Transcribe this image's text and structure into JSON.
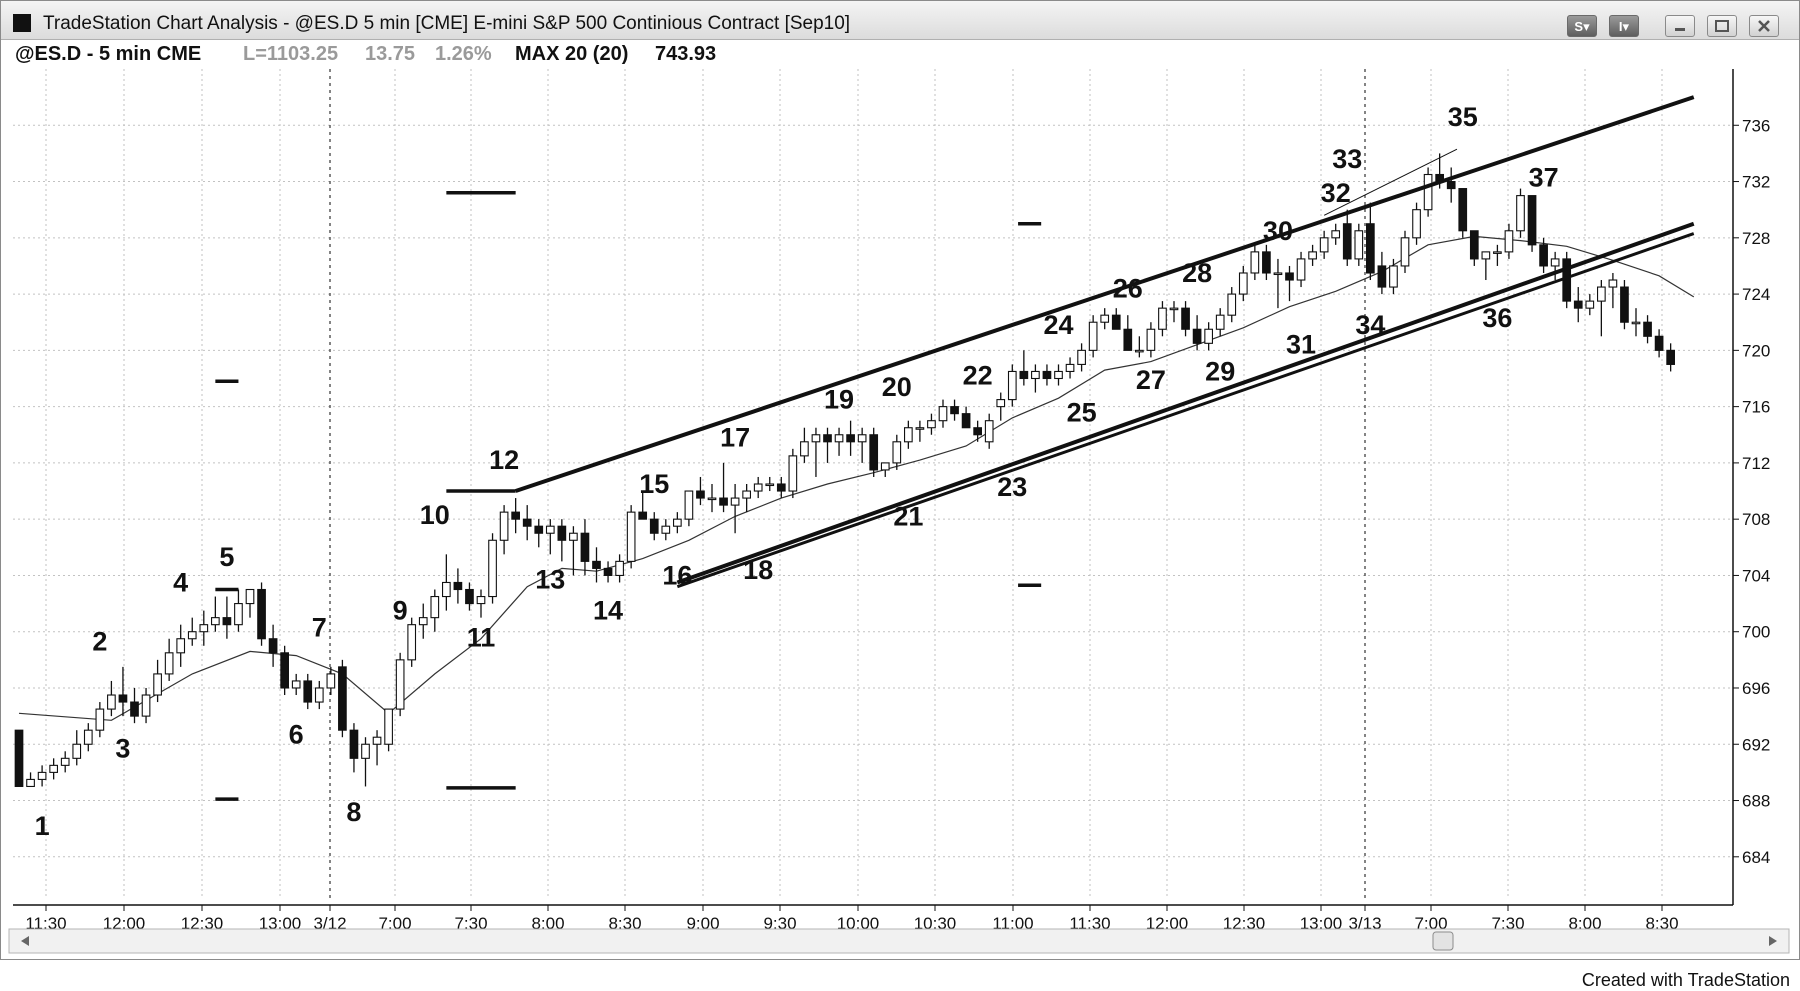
{
  "window": {
    "title": "TradeStation Chart Analysis - @ES.D 5 min [CME] E-mini S&P 500 Continious Contract [Sep10]",
    "buttons": [
      "S",
      "I"
    ]
  },
  "header": {
    "symbol": "@ES.D - 5 min CME",
    "last": "L=1103.25",
    "change": "13.75",
    "change_pct": "1.26%",
    "indicator": "MAX 20 (20)",
    "indicator_value": "743.93"
  },
  "footer": {
    "text": "Created with TradeStation"
  },
  "colors": {
    "grid": "#c2c2c2",
    "bear": "#111111",
    "bull": "#ffffff",
    "ma": "#333333"
  },
  "chart_data": {
    "type": "candlestick",
    "ylim": [
      681,
      740
    ],
    "y_ticks": [
      684,
      688,
      692,
      696,
      700,
      704,
      708,
      712,
      716,
      720,
      724,
      728,
      732,
      736
    ],
    "x_ticks": [
      "11:30",
      "12:00",
      "12:30",
      "13:00",
      "3/12",
      "7:00",
      "7:30",
      "8:00",
      "8:30",
      "9:00",
      "9:30",
      "10:00",
      "10:30",
      "11:00",
      "11:30",
      "12:00",
      "12:30",
      "13:00",
      "3/13",
      "7:00",
      "7:30",
      "8:00",
      "8:30"
    ],
    "session_breaks_at": [
      "3/12",
      "3/13"
    ],
    "candles_ohlc": [
      [
        693,
        693,
        689,
        689
      ],
      [
        689,
        690,
        689,
        689.5
      ],
      [
        689.5,
        690.5,
        689,
        690
      ],
      [
        690,
        691,
        689.5,
        690.5
      ],
      [
        690.5,
        691.5,
        690,
        691
      ],
      [
        691,
        693,
        690.5,
        692
      ],
      [
        692,
        693.5,
        691.5,
        693
      ],
      [
        693,
        695,
        692.5,
        694.5
      ],
      [
        694.5,
        696.5,
        694,
        695.5
      ],
      [
        695.5,
        697.5,
        694,
        695
      ],
      [
        695,
        696,
        693.5,
        694
      ],
      [
        694,
        696,
        693.5,
        695.5
      ],
      [
        695.5,
        698,
        695,
        697
      ],
      [
        697,
        699.5,
        696.5,
        698.5
      ],
      [
        698.5,
        700.5,
        697.5,
        699.5
      ],
      [
        699.5,
        701,
        699,
        700
      ],
      [
        700,
        701.5,
        699,
        700.5
      ],
      [
        700.5,
        702.5,
        700,
        701
      ],
      [
        701,
        702.5,
        699.5,
        700.5
      ],
      [
        700.5,
        703,
        700,
        702
      ],
      [
        702,
        703,
        701,
        703
      ],
      [
        703,
        703.5,
        699,
        699.5
      ],
      [
        699.5,
        700.5,
        697.5,
        698.5
      ],
      [
        698.5,
        699,
        695.5,
        696
      ],
      [
        696,
        697,
        695.5,
        696.5
      ],
      [
        696.5,
        697,
        694.5,
        695
      ],
      [
        695,
        696.5,
        694.5,
        696
      ],
      [
        696,
        697.5,
        695.5,
        697
      ],
      [
        697.5,
        698,
        692.5,
        693
      ],
      [
        693,
        693.5,
        690,
        691
      ],
      [
        691,
        692.5,
        689,
        692
      ],
      [
        692,
        693,
        690.5,
        692.5
      ],
      [
        692,
        694.5,
        691.5,
        694.5
      ],
      [
        694.5,
        698.5,
        694,
        698
      ],
      [
        698,
        701,
        697.5,
        700.5
      ],
      [
        700.5,
        702,
        699.5,
        701
      ],
      [
        701,
        703,
        700,
        702.5
      ],
      [
        702.5,
        705.5,
        701.5,
        703.5
      ],
      [
        703.5,
        704.5,
        702,
        703
      ],
      [
        703,
        703.5,
        701.5,
        702
      ],
      [
        702,
        703,
        701,
        702.5
      ],
      [
        702.5,
        707,
        702,
        706.5
      ],
      [
        706.5,
        709,
        705.5,
        708.5
      ],
      [
        708.5,
        709.5,
        707,
        708
      ],
      [
        708,
        709,
        706.5,
        707.5
      ],
      [
        707.5,
        708,
        706,
        707
      ],
      [
        707,
        708,
        705.5,
        707.5
      ],
      [
        707.5,
        708,
        705,
        706.5
      ],
      [
        706.5,
        707.5,
        704,
        707
      ],
      [
        707,
        708,
        704,
        705
      ],
      [
        705,
        706,
        703.5,
        704.5
      ],
      [
        704.5,
        705,
        703.5,
        704
      ],
      [
        704,
        705.5,
        703.5,
        705
      ],
      [
        705,
        709,
        704.5,
        708.5
      ],
      [
        708.5,
        710,
        708,
        708
      ],
      [
        708,
        708.5,
        706.5,
        707
      ],
      [
        707,
        708,
        706.5,
        707.5
      ],
      [
        707.5,
        708.5,
        707,
        708
      ],
      [
        708,
        710,
        707.5,
        710
      ],
      [
        710,
        711,
        709,
        709.5
      ],
      [
        709.5,
        710.5,
        708.5,
        709.5
      ],
      [
        709.5,
        712,
        708.5,
        709
      ],
      [
        709,
        710.5,
        707,
        709.5
      ],
      [
        709.5,
        710.5,
        708.5,
        710
      ],
      [
        710,
        711,
        709.5,
        710.5
      ],
      [
        710.5,
        711,
        710,
        710.5
      ],
      [
        710.5,
        711,
        709.5,
        710
      ],
      [
        710,
        713,
        709.5,
        712.5
      ],
      [
        712.5,
        714.5,
        712,
        713.5
      ],
      [
        713.5,
        714.5,
        711,
        714
      ],
      [
        714,
        714.5,
        712,
        713.5
      ],
      [
        713.5,
        714.5,
        712.5,
        714
      ],
      [
        714,
        715,
        712.5,
        713.5
      ],
      [
        713.5,
        714.5,
        712,
        714
      ],
      [
        714,
        714.5,
        711,
        711.5
      ],
      [
        711.5,
        712,
        711,
        712
      ],
      [
        712,
        714,
        711.5,
        713.5
      ],
      [
        713.5,
        715,
        713,
        714.5
      ],
      [
        714.5,
        715,
        713.5,
        714.5
      ],
      [
        714.5,
        715.5,
        714,
        715
      ],
      [
        715,
        716.5,
        714.5,
        716
      ],
      [
        716,
        716.5,
        715,
        715.5
      ],
      [
        715.5,
        716,
        714.5,
        714.5
      ],
      [
        714.5,
        715,
        713.5,
        714
      ],
      [
        713.5,
        715.5,
        713,
        715
      ],
      [
        716,
        717,
        715,
        716.5
      ],
      [
        716.5,
        719,
        716,
        718.5
      ],
      [
        718.5,
        720,
        717.5,
        718
      ],
      [
        718,
        719,
        717,
        718.5
      ],
      [
        718.5,
        719,
        717.5,
        718
      ],
      [
        718,
        719,
        717.5,
        718.5
      ],
      [
        718.5,
        719.5,
        718,
        719
      ],
      [
        719,
        720.5,
        718.5,
        720
      ],
      [
        720,
        722.5,
        719.5,
        722
      ],
      [
        722,
        723,
        721.5,
        722.5
      ],
      [
        722.5,
        723,
        721.5,
        721.5
      ],
      [
        721.5,
        722.5,
        720,
        720
      ],
      [
        720,
        721,
        719.5,
        720
      ],
      [
        720,
        722,
        719.5,
        721.5
      ],
      [
        721.5,
        723.5,
        721,
        723
      ],
      [
        723,
        723.5,
        722,
        723
      ],
      [
        723,
        723.5,
        721,
        721.5
      ],
      [
        721.5,
        722.5,
        720,
        720.5
      ],
      [
        720.5,
        722,
        720,
        721.5
      ],
      [
        721.5,
        723,
        721,
        722.5
      ],
      [
        722.5,
        724.5,
        722,
        724
      ],
      [
        724,
        726,
        723.5,
        725.5
      ],
      [
        725.5,
        727.5,
        725,
        727
      ],
      [
        727,
        727.5,
        725,
        725.5
      ],
      [
        725.5,
        726.5,
        723,
        725.5
      ],
      [
        725.5,
        726,
        723.5,
        725
      ],
      [
        725,
        727,
        724.5,
        726.5
      ],
      [
        726.5,
        727.5,
        726,
        727
      ],
      [
        727,
        728.5,
        726.5,
        728
      ],
      [
        728,
        729,
        727.5,
        728.5
      ],
      [
        729,
        730,
        726,
        726.5
      ],
      [
        726.5,
        729,
        726,
        728.5
      ],
      [
        729,
        730.5,
        725,
        725.5
      ],
      [
        726,
        727,
        724,
        724.5
      ],
      [
        724.5,
        726.5,
        724,
        726
      ],
      [
        726,
        728.5,
        725.5,
        728
      ],
      [
        728,
        730.5,
        727.5,
        730
      ],
      [
        730,
        733,
        729.5,
        732.5
      ],
      [
        732.5,
        734,
        731.5,
        732
      ],
      [
        732,
        733,
        730.5,
        731.5
      ],
      [
        731.5,
        731.5,
        728,
        728.5
      ],
      [
        728.5,
        728.5,
        726,
        726.5
      ],
      [
        726.5,
        727,
        725,
        727
      ],
      [
        727,
        727.5,
        726,
        727
      ],
      [
        727,
        729,
        726.5,
        728.5
      ],
      [
        728.5,
        731.5,
        728,
        731
      ],
      [
        731,
        731,
        727,
        727.5
      ],
      [
        727.5,
        728,
        725.5,
        726
      ],
      [
        726,
        727,
        725,
        726.5
      ],
      [
        726.5,
        727,
        723,
        723.5
      ],
      [
        723.5,
        724.5,
        722,
        723
      ],
      [
        723,
        724,
        722.5,
        723.5
      ],
      [
        723.5,
        725,
        721,
        724.5
      ],
      [
        724.5,
        725.5,
        723,
        725
      ],
      [
        724.5,
        725,
        721.5,
        722
      ],
      [
        722,
        723,
        721,
        722
      ],
      [
        722,
        722.5,
        720.5,
        721
      ],
      [
        721,
        721.5,
        719.5,
        720
      ],
      [
        720,
        720.5,
        718.5,
        719
      ]
    ],
    "moving_average": [
      [
        0,
        694.2
      ],
      [
        8,
        693.7
      ],
      [
        15,
        697
      ],
      [
        20,
        698.6
      ],
      [
        24,
        698.3
      ],
      [
        28,
        697
      ],
      [
        32,
        694.2
      ],
      [
        36,
        697
      ],
      [
        40,
        699.5
      ],
      [
        44,
        703.2
      ],
      [
        47,
        704.5
      ],
      [
        50,
        704.3
      ],
      [
        54,
        705.2
      ],
      [
        58,
        706.5
      ],
      [
        62,
        708.2
      ],
      [
        66,
        709.5
      ],
      [
        70,
        710.5
      ],
      [
        74,
        711.3
      ],
      [
        78,
        712.2
      ],
      [
        82,
        713.2
      ],
      [
        86,
        715.2
      ],
      [
        90,
        716.6
      ],
      [
        94,
        718.6
      ],
      [
        98,
        719.2
      ],
      [
        102,
        720.4
      ],
      [
        106,
        721.6
      ],
      [
        110,
        723.1
      ],
      [
        114,
        724.2
      ],
      [
        118,
        725.6
      ],
      [
        122,
        727.5
      ],
      [
        126,
        728.1
      ],
      [
        130,
        727.8
      ],
      [
        134,
        727.4
      ],
      [
        138,
        726.4
      ],
      [
        142,
        725.3
      ],
      [
        145,
        723.8
      ]
    ],
    "channel_lines": [
      {
        "from": [
          43,
          710
        ],
        "to": [
          145,
          738
        ]
      },
      {
        "from": [
          57,
          703.5
        ],
        "to": [
          145,
          729
        ]
      },
      {
        "from": [
          57,
          703.2
        ],
        "to": [
          145,
          728.3
        ]
      }
    ],
    "annotations": [
      {
        "label": "1",
        "x": 2,
        "y": 686.2
      },
      {
        "label": "2",
        "x": 7,
        "y": 699.3
      },
      {
        "label": "3",
        "x": 9,
        "y": 691.7
      },
      {
        "label": "4",
        "x": 14,
        "y": 703.5
      },
      {
        "label": "5",
        "x": 18,
        "y": 705.3
      },
      {
        "label": "6",
        "x": 24,
        "y": 692.7
      },
      {
        "label": "7",
        "x": 26,
        "y": 700.3
      },
      {
        "label": "8",
        "x": 29,
        "y": 687.2
      },
      {
        "label": "9",
        "x": 33,
        "y": 701.5
      },
      {
        "label": "10",
        "x": 36,
        "y": 708.3
      },
      {
        "label": "11",
        "x": 40,
        "y": 699.6
      },
      {
        "label": "12",
        "x": 42,
        "y": 712.2
      },
      {
        "label": "13",
        "x": 46,
        "y": 703.7
      },
      {
        "label": "14",
        "x": 51,
        "y": 701.5
      },
      {
        "label": "15",
        "x": 55,
        "y": 710.5
      },
      {
        "label": "16",
        "x": 57,
        "y": 704
      },
      {
        "label": "17",
        "x": 62,
        "y": 713.8
      },
      {
        "label": "18",
        "x": 64,
        "y": 704.4
      },
      {
        "label": "19",
        "x": 71,
        "y": 716.5
      },
      {
        "label": "20",
        "x": 76,
        "y": 717.4
      },
      {
        "label": "21",
        "x": 77,
        "y": 708.2
      },
      {
        "label": "22",
        "x": 83,
        "y": 718.2
      },
      {
        "label": "23",
        "x": 86,
        "y": 710.3
      },
      {
        "label": "24",
        "x": 90,
        "y": 721.8
      },
      {
        "label": "25",
        "x": 92,
        "y": 715.6
      },
      {
        "label": "26",
        "x": 96,
        "y": 724.4
      },
      {
        "label": "27",
        "x": 98,
        "y": 717.9
      },
      {
        "label": "28",
        "x": 102,
        "y": 725.5
      },
      {
        "label": "29",
        "x": 104,
        "y": 718.5
      },
      {
        "label": "30",
        "x": 109,
        "y": 728.5
      },
      {
        "label": "31",
        "x": 111,
        "y": 720.4
      },
      {
        "label": "32",
        "x": 114,
        "y": 731.2
      },
      {
        "label": "33",
        "x": 115,
        "y": 733.6
      },
      {
        "label": "34",
        "x": 117,
        "y": 721.8
      },
      {
        "label": "35",
        "x": 125,
        "y": 736.6
      },
      {
        "label": "36",
        "x": 128,
        "y": 722.3
      },
      {
        "label": "37",
        "x": 132,
        "y": 732.3
      }
    ],
    "level_markers": [
      {
        "x_from": 17,
        "x_to": 19,
        "y": 717.8
      },
      {
        "x_from": 17,
        "x_to": 19,
        "y": 688.1
      },
      {
        "x_from": 17,
        "x_to": 19,
        "y": 703
      },
      {
        "x_from": 37,
        "x_to": 43,
        "y": 731.2
      },
      {
        "x_from": 37,
        "x_to": 43,
        "y": 688.9
      },
      {
        "x_from": 37,
        "x_to": 43,
        "y": 710
      },
      {
        "x_from": 86.5,
        "x_to": 88.5,
        "y": 729
      },
      {
        "x_from": 86.5,
        "x_to": 88.5,
        "y": 703.3
      }
    ]
  }
}
